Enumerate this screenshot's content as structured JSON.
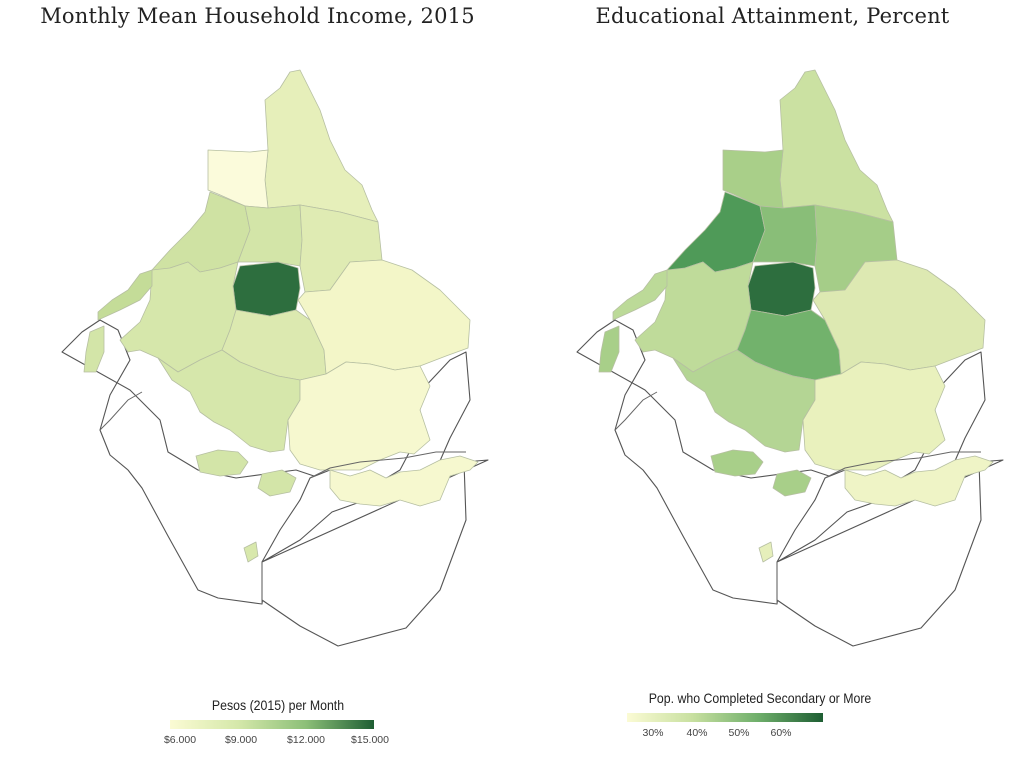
{
  "maps": [
    {
      "title": "Monthly Mean Household Income, 2015",
      "legend": {
        "title": "Pesos (2015) per Month",
        "ticks": [
          "$6.000",
          "$9.000",
          "$12.000",
          "$15.000"
        ]
      },
      "colors": {
        "northcap": "#e6efba",
        "nwwhite": "#fbfbdb",
        "northeast": "#e7f0bd",
        "nw1": "#cfe2a3",
        "n2": "#d3e5a8",
        "ne2": "#dfebb3",
        "center": "#2d6e3e",
        "west": "#d6e7ab",
        "sw": "#d6e7ab",
        "south": "#dce9b0",
        "east": "#f3f6c8",
        "se1": "#f6f8cf",
        "islands": "#f6f8cf",
        "patches": "#d3e5a8",
        "far": "#c4dc98",
        "sp1": "#d8e8ac"
      },
      "gradient": [
        "#fbfbd4",
        "#d5e8aa",
        "#8cbf78",
        "#1e5e33"
      ]
    },
    {
      "title": "Educational Attainment, Percent",
      "legend": {
        "title": "Pop. who Completed Secondary or More",
        "ticks": [
          "30%",
          "40%",
          "50%",
          "60%"
        ]
      },
      "colors": {
        "northcap": "#cbe1a2",
        "nwwhite": "#a9cf89",
        "northeast": "#c4dd9c",
        "nw1": "#4f9a58",
        "n2": "#89be78",
        "ne2": "#a5cd88",
        "center": "#2d6e3e",
        "west": "#bfdb9a",
        "sw": "#b4d594",
        "south": "#72b26c",
        "east": "#dde9b2",
        "se1": "#e9f1bd",
        "islands": "#eff4c6",
        "patches": "#a8cf89",
        "far": "#bcda98",
        "sp1": "#e6efbb"
      },
      "gradient": [
        "#fbfbd4",
        "#c8e0a0",
        "#6faf6b",
        "#1e5e33"
      ]
    }
  ]
}
